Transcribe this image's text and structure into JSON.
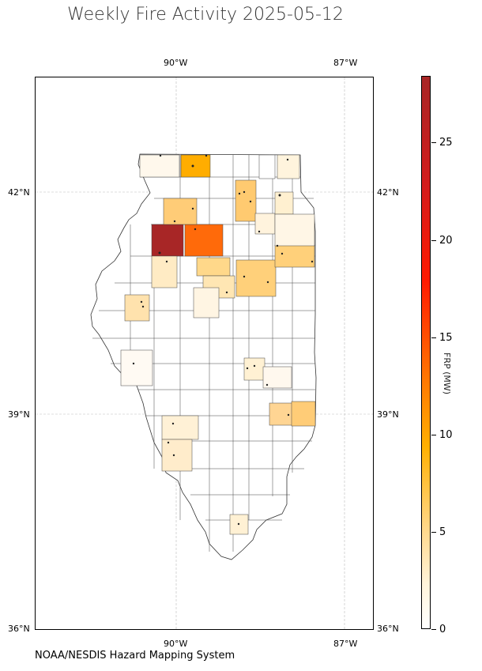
{
  "title": "Weekly Fire Activity 2025-05-12",
  "credit": "NOAA/NESDIS Hazard Mapping System",
  "map": {
    "lon_ticks": [
      "90°W",
      "87°W"
    ],
    "lat_ticks": [
      "42°N",
      "39°N",
      "36°N"
    ],
    "state": "Illinois"
  },
  "colorbar": {
    "label": "FRP (MW)",
    "ticks": [
      "0",
      "5",
      "10",
      "15",
      "20",
      "25"
    ],
    "colors": [
      "#ffffff",
      "#fff4db",
      "#ffd88a",
      "#ffb000",
      "#ff7800",
      "#ff1a00",
      "#a82626"
    ]
  }
}
